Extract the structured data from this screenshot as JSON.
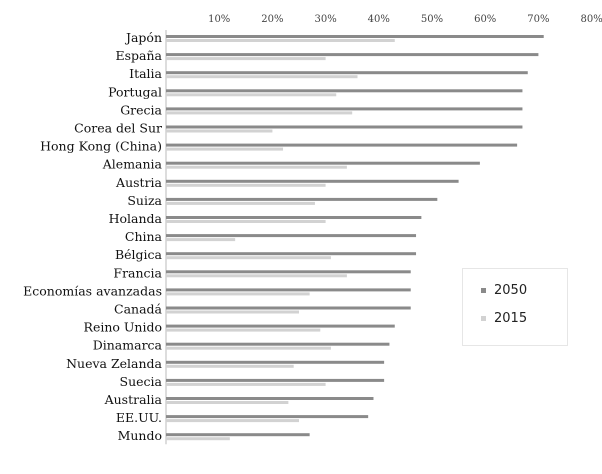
{
  "chart_data": {
    "type": "bar",
    "orientation": "horizontal",
    "title": "",
    "xlabel": "",
    "ylabel": "",
    "xlim": [
      0,
      80
    ],
    "x_ticks": [
      "10%",
      "20%",
      "30%",
      "40%",
      "50%",
      "60%",
      "70%",
      "80%"
    ],
    "grid": false,
    "legend_position": "right",
    "categories": [
      "Japón",
      "España",
      "Italia",
      "Portugal",
      "Grecia",
      "Corea del Sur",
      "Hong Kong (China)",
      "Alemania",
      "Austria",
      "Suiza",
      "Holanda",
      "China",
      "Bélgica",
      "Francia",
      "Economías avanzadas",
      "Canadá",
      "Reino Unido",
      "Dinamarca",
      "Nueva Zelanda",
      "Suecia",
      "Australia",
      "EE.UU.",
      "Mundo"
    ],
    "series": [
      {
        "name": "2050",
        "color": "#8a8a8a",
        "values": [
          71,
          70,
          68,
          67,
          67,
          67,
          66,
          59,
          55,
          51,
          48,
          47,
          47,
          46,
          46,
          46,
          43,
          42,
          41,
          41,
          39,
          38,
          27
        ]
      },
      {
        "name": "2015",
        "color": "#d2d2d2",
        "values": [
          43,
          30,
          36,
          32,
          35,
          20,
          22,
          34,
          30,
          28,
          30,
          13,
          31,
          34,
          27,
          25,
          29,
          31,
          24,
          30,
          23,
          25,
          12
        ]
      }
    ]
  }
}
